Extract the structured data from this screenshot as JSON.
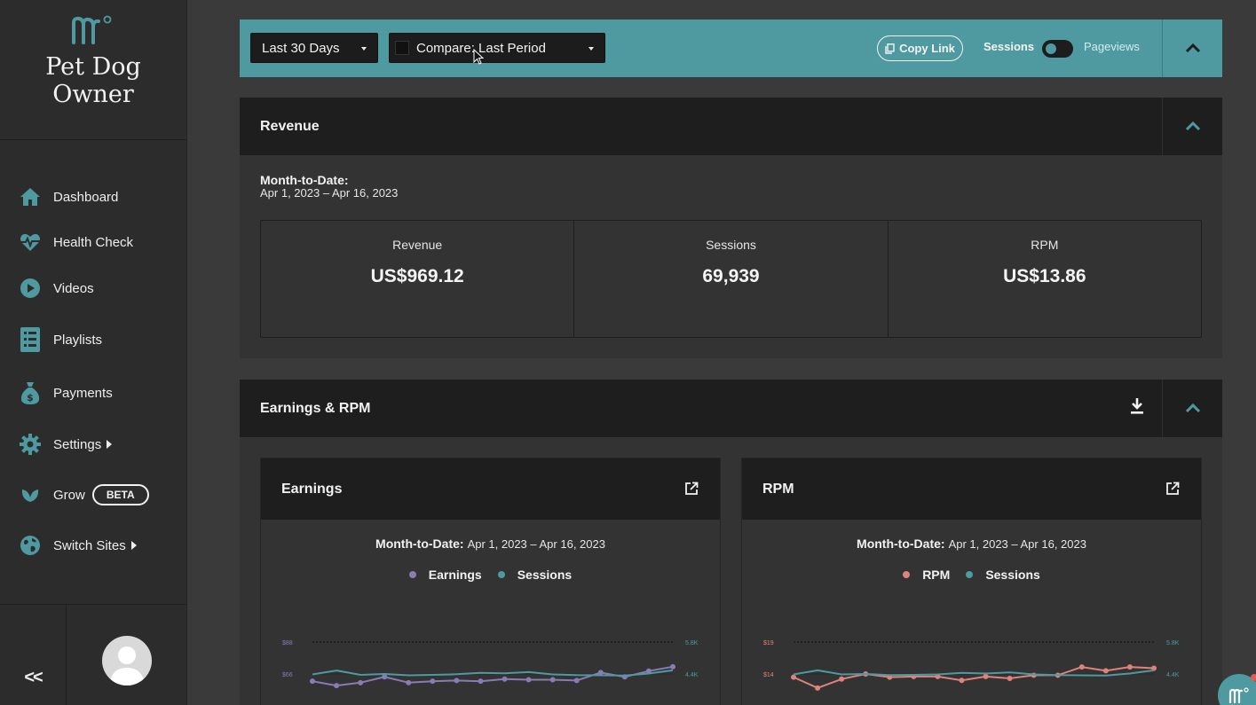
{
  "brand": {
    "title_line1": "Pet Dog",
    "title_line2": "Owner",
    "accent": "#4e9aa0"
  },
  "sidebar": {
    "items": [
      {
        "label": "Dashboard",
        "icon": "home-icon"
      },
      {
        "label": "Health Check",
        "icon": "heartbeat-icon"
      },
      {
        "label": "Videos",
        "icon": "play-icon"
      },
      {
        "label": "Playlists",
        "icon": "list-icon"
      },
      {
        "label": "Payments",
        "icon": "money-bag-icon"
      },
      {
        "label": "Settings",
        "icon": "gear-icon"
      },
      {
        "label": "Grow",
        "icon": "leaf-icon",
        "badge": "BETA"
      },
      {
        "label": "Switch Sites",
        "icon": "globe-icon"
      }
    ],
    "collapse_label": "<<"
  },
  "toolbar": {
    "range_label": "Last 30 Days",
    "compare_label": "Compare: Last Period",
    "copy_link_label": "Copy Link",
    "toggle_on_label": "Sessions",
    "toggle_off_label": "Pageviews"
  },
  "revenue": {
    "title": "Revenue",
    "mtd_label": "Month-to-Date:",
    "mtd_range": "Apr 1, 2023 – Apr 16, 2023",
    "metrics": [
      {
        "label": "Revenue",
        "value": "US$969.12"
      },
      {
        "label": "Sessions",
        "value": "69,939"
      },
      {
        "label": "RPM",
        "value": "US$13.86"
      }
    ]
  },
  "earnings_rpm": {
    "title": "Earnings & RPM",
    "cards": [
      {
        "title": "Earnings",
        "range_label": "Month-to-Date:",
        "range": "Apr 1, 2023 – Apr 16, 2023",
        "legend": [
          {
            "name": "Earnings",
            "color": "#8a7bb5"
          },
          {
            "name": "Sessions",
            "color": "#4e9aa0"
          }
        ]
      },
      {
        "title": "RPM",
        "range_label": "Month-to-Date:",
        "range": "Apr 1, 2023 – Apr 16, 2023",
        "legend": [
          {
            "name": "RPM",
            "color": "#e0837b"
          },
          {
            "name": "Sessions",
            "color": "#4e9aa0"
          }
        ]
      }
    ]
  },
  "chart_data": [
    {
      "type": "line",
      "title": "Earnings",
      "left_ticks": [
        "$88",
        "$66"
      ],
      "right_ticks": [
        "5.8K",
        "4.4K"
      ],
      "ylim_left": [
        44,
        88
      ],
      "ylim_right": [
        3000,
        5800
      ],
      "series": [
        {
          "name": "Earnings",
          "axis": "left",
          "color": "#8a7bb5",
          "values": [
            61,
            58,
            60,
            64,
            60,
            61,
            61.5,
            61,
            62.5,
            62,
            62,
            61.5,
            67,
            64,
            68,
            71
          ]
        },
        {
          "name": "Sessions",
          "axis": "right",
          "color": "#4e9aa0",
          "values": [
            4380,
            4550,
            4360,
            4400,
            4340,
            4360,
            4390,
            4450,
            4430,
            4480,
            4380,
            4350,
            4340,
            4330,
            4420,
            4560
          ]
        }
      ]
    },
    {
      "type": "line",
      "title": "RPM",
      "left_ticks": [
        "$19",
        "$14"
      ],
      "right_ticks": [
        "5.8K",
        "4.4K"
      ],
      "ylim_left": [
        9,
        19
      ],
      "ylim_right": [
        3000,
        5800
      ],
      "series": [
        {
          "name": "RPM",
          "axis": "left",
          "color": "#e0837b",
          "values": [
            13.5,
            11.8,
            13.2,
            14,
            13.5,
            13.6,
            13.6,
            13,
            13.6,
            13.3,
            13.8,
            13.8,
            15.1,
            14.5,
            15.1,
            14.9
          ]
        },
        {
          "name": "Sessions",
          "axis": "right",
          "color": "#4e9aa0",
          "values": [
            4380,
            4560,
            4380,
            4400,
            4350,
            4360,
            4380,
            4450,
            4420,
            4470,
            4380,
            4350,
            4340,
            4330,
            4420,
            4560
          ]
        }
      ]
    }
  ]
}
